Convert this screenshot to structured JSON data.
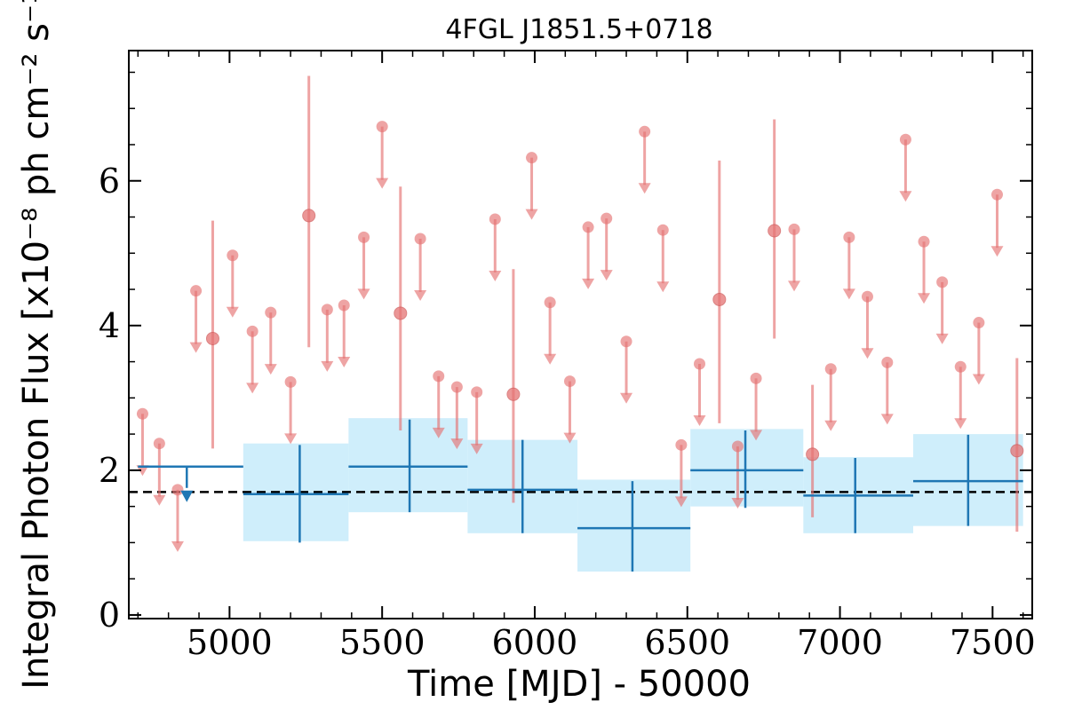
{
  "chart_data": {
    "type": "scatter",
    "title": "4FGL J1851.5+0718",
    "xlabel": "Time [MJD] - 50000",
    "ylabel": "Integral Photon Flux [x10⁻⁸ ph cm⁻² s⁻¹]",
    "xlim": [
      4670,
      7630
    ],
    "ylim": [
      -0.05,
      7.8
    ],
    "xticks": [
      "5000",
      "5500",
      "6000",
      "6500",
      "7000",
      "7500"
    ],
    "yticks": [
      "0",
      "2",
      "4",
      "6"
    ],
    "grid": false,
    "mean_flux": 1.7,
    "colors": {
      "fine_points": "#e57373",
      "long_bins": "#1f77b4",
      "band_fill": "#cfeefb",
      "mean_line": "#000000"
    },
    "long_bins": [
      {
        "x": 4860,
        "x_lo": 4700,
        "x_hi": 5045,
        "y": 2.05,
        "upper_limit": true
      },
      {
        "x": 5230,
        "x_lo": 5045,
        "x_hi": 5390,
        "y": 1.67,
        "err_lo": 1.0,
        "err_hi": 2.35,
        "band_lo": 1.02,
        "band_hi": 2.37
      },
      {
        "x": 5590,
        "x_lo": 5390,
        "x_hi": 5780,
        "y": 2.05,
        "err_lo": 1.42,
        "err_hi": 2.7,
        "band_lo": 1.42,
        "band_hi": 2.72
      },
      {
        "x": 5960,
        "x_lo": 5780,
        "x_hi": 6140,
        "y": 1.73,
        "err_lo": 1.13,
        "err_hi": 2.42,
        "band_lo": 1.13,
        "band_hi": 2.42
      },
      {
        "x": 6320,
        "x_lo": 6140,
        "x_hi": 6510,
        "y": 1.2,
        "err_lo": 0.6,
        "err_hi": 1.85,
        "band_lo": 0.6,
        "band_hi": 1.87
      },
      {
        "x": 6690,
        "x_lo": 6510,
        "x_hi": 6880,
        "y": 2.0,
        "err_lo": 1.48,
        "err_hi": 2.55,
        "band_lo": 1.5,
        "band_hi": 2.57
      },
      {
        "x": 7050,
        "x_lo": 6880,
        "x_hi": 7240,
        "y": 1.65,
        "err_lo": 1.13,
        "err_hi": 2.17,
        "band_lo": 1.13,
        "band_hi": 2.18
      },
      {
        "x": 7420,
        "x_lo": 7240,
        "x_hi": 7600,
        "y": 1.85,
        "err_lo": 1.23,
        "err_hi": 2.49,
        "band_lo": 1.23,
        "band_hi": 2.5
      }
    ],
    "fine_points": [
      {
        "x": 4715,
        "y": 2.78,
        "ul": true
      },
      {
        "x": 4770,
        "y": 2.37,
        "ul": true
      },
      {
        "x": 4830,
        "y": 1.73,
        "ul": true
      },
      {
        "x": 4890,
        "y": 4.48,
        "ul": true
      },
      {
        "x": 4945,
        "y": 3.82,
        "err_lo": 2.3,
        "err_hi": 5.45
      },
      {
        "x": 5010,
        "y": 4.97,
        "ul": true
      },
      {
        "x": 5075,
        "y": 3.92,
        "ul": true
      },
      {
        "x": 5135,
        "y": 4.18,
        "ul": true
      },
      {
        "x": 5200,
        "y": 3.22,
        "ul": true
      },
      {
        "x": 5260,
        "y": 5.52,
        "err_lo": 3.7,
        "err_hi": 7.45
      },
      {
        "x": 5320,
        "y": 4.22,
        "ul": true
      },
      {
        "x": 5375,
        "y": 4.28,
        "ul": true
      },
      {
        "x": 5440,
        "y": 5.22,
        "ul": true
      },
      {
        "x": 5500,
        "y": 6.75,
        "ul": true
      },
      {
        "x": 5560,
        "y": 4.17,
        "err_lo": 2.55,
        "err_hi": 5.92
      },
      {
        "x": 5625,
        "y": 5.2,
        "ul": true
      },
      {
        "x": 5685,
        "y": 3.3,
        "ul": true
      },
      {
        "x": 5745,
        "y": 3.15,
        "ul": true
      },
      {
        "x": 5810,
        "y": 3.08,
        "ul": true
      },
      {
        "x": 5870,
        "y": 5.47,
        "ul": true
      },
      {
        "x": 5930,
        "y": 3.05,
        "err_lo": 1.55,
        "err_hi": 4.78
      },
      {
        "x": 5990,
        "y": 6.32,
        "ul": true
      },
      {
        "x": 6050,
        "y": 4.32,
        "ul": true
      },
      {
        "x": 6115,
        "y": 3.23,
        "ul": true
      },
      {
        "x": 6175,
        "y": 5.36,
        "ul": true
      },
      {
        "x": 6235,
        "y": 5.48,
        "ul": true
      },
      {
        "x": 6300,
        "y": 3.78,
        "ul": true
      },
      {
        "x": 6360,
        "y": 6.68,
        "ul": true
      },
      {
        "x": 6420,
        "y": 5.32,
        "ul": true
      },
      {
        "x": 6480,
        "y": 2.35,
        "ul": true
      },
      {
        "x": 6540,
        "y": 3.47,
        "ul": true
      },
      {
        "x": 6605,
        "y": 4.36,
        "err_lo": 2.65,
        "err_hi": 6.28
      },
      {
        "x": 6665,
        "y": 2.33,
        "ul": true
      },
      {
        "x": 6725,
        "y": 3.27,
        "ul": true
      },
      {
        "x": 6785,
        "y": 5.31,
        "err_lo": 3.82,
        "err_hi": 6.85
      },
      {
        "x": 6850,
        "y": 5.33,
        "ul": true
      },
      {
        "x": 6910,
        "y": 2.22,
        "err_lo": 1.35,
        "err_hi": 3.18
      },
      {
        "x": 6970,
        "y": 3.4,
        "ul": true
      },
      {
        "x": 7030,
        "y": 5.22,
        "ul": true
      },
      {
        "x": 7090,
        "y": 4.4,
        "ul": true
      },
      {
        "x": 7155,
        "y": 3.49,
        "ul": true
      },
      {
        "x": 7215,
        "y": 6.57,
        "ul": true
      },
      {
        "x": 7275,
        "y": 5.16,
        "ul": true
      },
      {
        "x": 7335,
        "y": 4.6,
        "ul": true
      },
      {
        "x": 7395,
        "y": 3.43,
        "ul": true
      },
      {
        "x": 7455,
        "y": 4.04,
        "ul": true
      },
      {
        "x": 7515,
        "y": 5.81,
        "ul": true
      },
      {
        "x": 7580,
        "y": 2.27,
        "err_lo": 1.15,
        "err_hi": 3.55
      }
    ]
  }
}
